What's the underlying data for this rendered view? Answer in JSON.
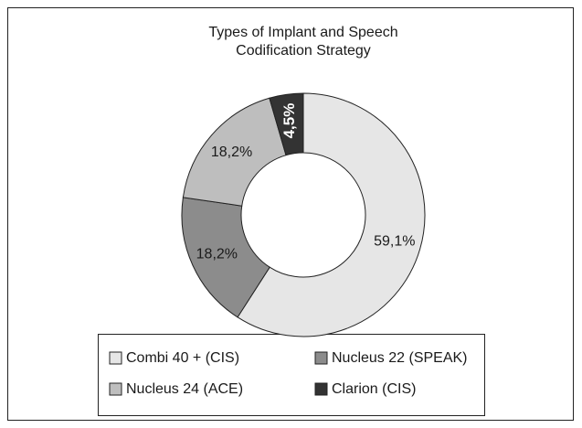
{
  "chart_data": {
    "type": "donut",
    "title": [
      "Types of Implant and Speech",
      "Codification Strategy"
    ],
    "categories": [
      "Combi 40 + (CIS)",
      "Nucleus 22 (SPEAK)",
      "Nucleus 24 (ACE)",
      "Clarion (CIS)"
    ],
    "values": [
      59.1,
      18.2,
      18.2,
      4.5
    ],
    "value_labels": [
      "59,1%",
      "18,2%",
      "18,2%",
      "4,5%"
    ],
    "colors": [
      "#e6e6e6",
      "#8c8c8c",
      "#bebebe",
      "#333333"
    ]
  }
}
